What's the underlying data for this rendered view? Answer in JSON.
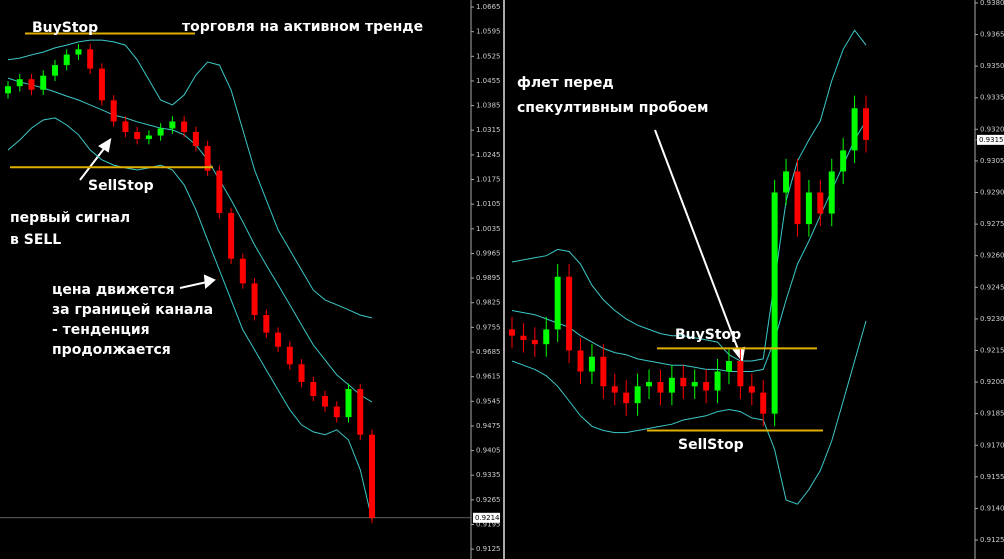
{
  "chart_data": [
    {
      "type": "candlestick",
      "open": [
        1.042,
        1.044,
        1.046,
        1.043,
        1.047,
        1.05,
        1.053,
        1.0545,
        1.049,
        1.04,
        1.034,
        1.031,
        1.029,
        1.03,
        1.032,
        1.034,
        1.031,
        1.027,
        1.02,
        1.008,
        0.995,
        0.988,
        0.979,
        0.974,
        0.97,
        0.965,
        0.96,
        0.956,
        0.953,
        0.95,
        0.958,
        0.945
      ],
      "high": [
        1.0455,
        1.0475,
        1.0475,
        1.0485,
        1.0515,
        1.0545,
        1.056,
        1.056,
        1.0505,
        1.0415,
        1.0355,
        1.0325,
        1.0315,
        1.0335,
        1.0355,
        1.0355,
        1.0325,
        1.0285,
        1.0215,
        1.0095,
        0.9965,
        0.9895,
        0.9805,
        0.9755,
        0.9715,
        0.9665,
        0.9615,
        0.9575,
        0.9545,
        0.9595,
        0.9595,
        0.9465
      ],
      "low": [
        1.0405,
        1.0425,
        1.0415,
        1.0415,
        1.0455,
        1.0485,
        1.0515,
        1.0475,
        1.0385,
        1.0325,
        1.0295,
        1.0275,
        1.0275,
        1.0285,
        1.0305,
        1.0295,
        1.0255,
        1.0185,
        1.0065,
        0.9935,
        0.9865,
        0.9775,
        0.9725,
        0.9685,
        0.9635,
        0.9585,
        0.9545,
        0.9515,
        0.9485,
        0.9485,
        0.9435,
        0.9199
      ],
      "close": [
        1.044,
        1.046,
        1.043,
        1.047,
        1.05,
        1.053,
        1.0545,
        1.049,
        1.04,
        1.034,
        1.031,
        1.029,
        1.03,
        1.032,
        1.034,
        1.031,
        1.027,
        1.02,
        1.008,
        0.995,
        0.988,
        0.979,
        0.974,
        0.97,
        0.965,
        0.96,
        0.956,
        0.953,
        0.95,
        0.958,
        0.945,
        0.9214
      ],
      "up_color": "#00ff00",
      "down_color": "#ff0000",
      "bands": [
        {
          "color": "#3cc8c8",
          "values": [
            1.0515,
            1.052,
            1.0529,
            1.0537,
            1.0549,
            1.0557,
            1.0566,
            1.0571,
            1.0571,
            1.0566,
            1.0557,
            1.0515,
            1.0458,
            1.0401,
            1.0387,
            1.0415,
            1.0472,
            1.0509,
            1.05,
            1.0429,
            1.0316,
            1.0202,
            1.0117,
            1.0032,
            0.9975,
            0.9918,
            0.9861,
            0.9833,
            0.9819,
            0.9805,
            0.979,
            0.9782
          ]
        },
        {
          "color": "#3cc8c8",
          "values": [
            1.0463,
            1.0452,
            1.0444,
            1.0435,
            1.0424,
            1.0412,
            1.0401,
            1.0387,
            1.0373,
            1.0358,
            1.035,
            1.0339,
            1.033,
            1.0321,
            1.0316,
            1.0302,
            1.0273,
            1.0231,
            1.0174,
            1.0117,
            1.0055,
            0.9989,
            0.9932,
            0.9876,
            0.9819,
            0.9762,
            0.9705,
            0.9663,
            0.962,
            0.9592,
            0.9563,
            0.9543
          ]
        },
        {
          "color": "#3cc8c8",
          "values": [
            1.0259,
            1.0287,
            1.0321,
            1.0344,
            1.035,
            1.033,
            1.0302,
            1.0259,
            1.0231,
            1.0216,
            1.0208,
            1.0202,
            1.0208,
            1.0216,
            1.0202,
            1.016,
            1.0089,
            1.0003,
            0.9918,
            0.9833,
            0.9748,
            0.9691,
            0.9634,
            0.9577,
            0.9521,
            0.9478,
            0.9458,
            0.945,
            0.9464,
            0.9435,
            0.935,
            0.9208
          ]
        }
      ],
      "ylim": [
        0.9097,
        1.0685
      ],
      "yticks": [
        1.0665,
        1.0595,
        1.0525,
        1.0455,
        1.0385,
        1.0315,
        1.0245,
        1.0175,
        1.0105,
        1.0035,
        0.9965,
        0.9895,
        0.9825,
        0.9755,
        0.9685,
        0.9615,
        0.9545,
        0.9475,
        0.9405,
        0.9335,
        0.9265,
        0.9195,
        0.9125
      ],
      "last": 0.9214,
      "level_color": "#e0b000",
      "levels": [
        {
          "label": "BuyStop",
          "value": 1.059
        },
        {
          "label": "SellStop",
          "value": 1.021
        }
      ],
      "annotations": [
        [
          "торговля на активном тренде"
        ],
        [
          "первый сигнал",
          "в SELL"
        ],
        [
          "цена движется",
          "за границей канала",
          "- тенденция",
          "продолжается"
        ]
      ]
    },
    {
      "type": "candlestick",
      "open": [
        0.9225,
        0.9222,
        0.922,
        0.9218,
        0.9225,
        0.925,
        0.9215,
        0.9205,
        0.9212,
        0.9198,
        0.9195,
        0.919,
        0.9198,
        0.92,
        0.9195,
        0.9202,
        0.9198,
        0.92,
        0.9196,
        0.9205,
        0.921,
        0.9198,
        0.9195,
        0.9185,
        0.929,
        0.93,
        0.9275,
        0.929,
        0.928,
        0.93,
        0.931,
        0.933
      ],
      "high": [
        0.9231,
        0.9228,
        0.9226,
        0.9231,
        0.9256,
        0.9256,
        0.9221,
        0.9218,
        0.9218,
        0.9204,
        0.9201,
        0.9204,
        0.9206,
        0.9206,
        0.9208,
        0.9208,
        0.9206,
        0.9206,
        0.9211,
        0.9216,
        0.9216,
        0.9204,
        0.9201,
        0.9296,
        0.9306,
        0.9306,
        0.9296,
        0.9296,
        0.9306,
        0.9316,
        0.9336,
        0.9336
      ],
      "low": [
        0.9216,
        0.9214,
        0.9212,
        0.9212,
        0.9219,
        0.9209,
        0.9199,
        0.9199,
        0.9192,
        0.9189,
        0.9184,
        0.9184,
        0.9192,
        0.9189,
        0.9189,
        0.9192,
        0.9192,
        0.919,
        0.919,
        0.9199,
        0.9192,
        0.9189,
        0.9179,
        0.9179,
        0.9284,
        0.9269,
        0.9269,
        0.9274,
        0.9274,
        0.9294,
        0.9304,
        0.9309
      ],
      "close": [
        0.9222,
        0.922,
        0.9218,
        0.9225,
        0.925,
        0.9215,
        0.9205,
        0.9212,
        0.9198,
        0.9195,
        0.919,
        0.9198,
        0.92,
        0.9195,
        0.9202,
        0.9198,
        0.92,
        0.9196,
        0.9205,
        0.921,
        0.9198,
        0.9195,
        0.9185,
        0.929,
        0.93,
        0.9275,
        0.929,
        0.928,
        0.93,
        0.931,
        0.933,
        0.9315
      ],
      "up_color": "#00ff00",
      "down_color": "#ff0000",
      "bands": [
        {
          "color": "#3cc8c8",
          "values": [
            0.9257,
            0.9258,
            0.9259,
            0.926,
            0.9263,
            0.9262,
            0.9256,
            0.9246,
            0.9239,
            0.9234,
            0.923,
            0.9227,
            0.9225,
            0.9223,
            0.9222,
            0.9222,
            0.9221,
            0.922,
            0.9219,
            0.9213,
            0.921,
            0.921,
            0.9211,
            0.9248,
            0.9286,
            0.9305,
            0.9315,
            0.9324,
            0.9343,
            0.9358,
            0.9367,
            0.936
          ]
        },
        {
          "color": "#3cc8c8",
          "values": [
            0.9234,
            0.9233,
            0.9232,
            0.923,
            0.9228,
            0.9226,
            0.9222,
            0.9219,
            0.9216,
            0.9214,
            0.9213,
            0.9211,
            0.921,
            0.9209,
            0.9208,
            0.9208,
            0.9207,
            0.9206,
            0.9206,
            0.9205,
            0.9205,
            0.9205,
            0.9206,
            0.922,
            0.9239,
            0.9256,
            0.9267,
            0.9279,
            0.9291,
            0.9303,
            0.9315,
            0.9324
          ]
        },
        {
          "color": "#3cc8c8",
          "values": [
            0.921,
            0.9208,
            0.9206,
            0.9203,
            0.9198,
            0.9191,
            0.9184,
            0.9179,
            0.9177,
            0.9176,
            0.9176,
            0.9177,
            0.9178,
            0.9179,
            0.918,
            0.9182,
            0.9183,
            0.9184,
            0.9186,
            0.9187,
            0.9186,
            0.9183,
            0.9182,
            0.9168,
            0.9144,
            0.9142,
            0.9149,
            0.9158,
            0.9172,
            0.9191,
            0.921,
            0.9229
          ]
        }
      ],
      "ylim": [
        0.9116,
        0.93814
      ],
      "yticks": [
        {
          "value": 0.938,
          "label": "0.9380"
        },
        0.9365,
        {
          "value": 0.935,
          "label": "0.9350"
        },
        0.9335,
        {
          "value": 0.932,
          "label": "0.9320"
        },
        0.9305,
        {
          "value": 0.929,
          "label": "0.9290"
        },
        0.9275,
        {
          "value": 0.926,
          "label": "0.9260"
        },
        0.9245,
        {
          "value": 0.923,
          "label": "0.9230"
        },
        0.9215,
        {
          "value": 0.92,
          "label": "0.9200"
        },
        0.9185,
        {
          "value": 0.917,
          "label": "0.9170"
        },
        0.9155,
        {
          "value": 0.914,
          "label": "0.9140"
        },
        0.9125
      ],
      "last": 0.9315,
      "level_color": "#e0b000",
      "levels": [
        {
          "label": "BuyStop",
          "value": 0.9216
        },
        {
          "label": "SellStop",
          "value": 0.9177
        }
      ],
      "annotations": [
        [
          "флет перед",
          "спекултивным пробоем"
        ]
      ]
    }
  ]
}
